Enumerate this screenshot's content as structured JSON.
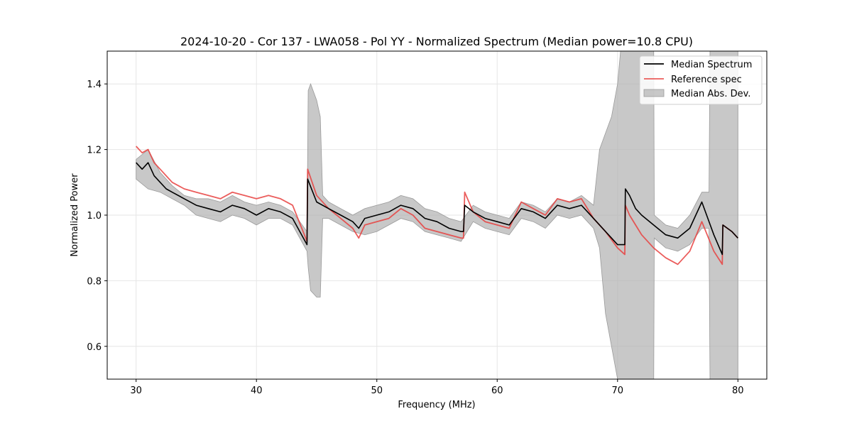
{
  "chart_data": {
    "type": "line",
    "title": "2024-10-20 - Cor 137 - LWA058 - Pol YY - Normalized Spectrum (Median power=10.8 CPU)",
    "xlabel": "Frequency (MHz)",
    "ylabel": "Normalized Power",
    "xlim": [
      27.6,
      82.4
    ],
    "ylim": [
      0.5,
      1.5
    ],
    "xticks": [
      30,
      40,
      50,
      60,
      70,
      80
    ],
    "yticks": [
      0.6,
      0.8,
      1.0,
      1.2,
      1.4
    ],
    "xtick_labels": [
      "30",
      "40",
      "50",
      "60",
      "70",
      "80"
    ],
    "ytick_labels": [
      "0.6",
      "0.8",
      "1.0",
      "1.2",
      "1.4"
    ],
    "grid": true,
    "legend_position": "top-right",
    "legend": [
      "Median Spectrum",
      "Reference spec",
      "Median Abs. Dev."
    ],
    "colors": {
      "median": "#000000",
      "reference": "#e8413f",
      "mad_fill": "#b0b0b0",
      "mad_edge": "#9a9a9a",
      "grid": "#e6e6e6"
    },
    "series": [
      {
        "name": "Median Spectrum",
        "x": [
          30,
          30.5,
          31,
          31.5,
          32,
          32.5,
          33,
          34,
          35,
          36,
          37,
          38,
          39,
          40,
          41,
          42,
          43,
          44.2,
          44.25,
          45,
          46,
          47,
          48,
          48.5,
          49,
          50,
          51,
          52,
          53,
          54,
          55,
          56,
          57,
          57.2,
          57.3,
          58,
          59,
          60,
          61,
          62,
          63,
          64,
          65,
          66,
          67,
          68,
          69,
          70,
          70.6,
          70.65,
          71,
          71.5,
          72,
          73,
          74,
          75,
          76,
          77,
          78,
          78.7,
          78.75,
          79.5,
          80
        ],
        "y": [
          1.16,
          1.14,
          1.16,
          1.12,
          1.1,
          1.08,
          1.07,
          1.05,
          1.03,
          1.02,
          1.01,
          1.03,
          1.02,
          1.0,
          1.02,
          1.01,
          0.99,
          0.91,
          1.11,
          1.04,
          1.02,
          1.0,
          0.98,
          0.96,
          0.99,
          1.0,
          1.01,
          1.03,
          1.02,
          0.99,
          0.98,
          0.96,
          0.95,
          0.95,
          1.03,
          1.01,
          0.99,
          0.98,
          0.97,
          1.02,
          1.01,
          0.99,
          1.03,
          1.02,
          1.03,
          0.99,
          0.95,
          0.91,
          0.91,
          1.08,
          1.06,
          1.02,
          1.0,
          0.97,
          0.94,
          0.93,
          0.96,
          1.04,
          0.94,
          0.88,
          0.97,
          0.95,
          0.93
        ]
      },
      {
        "name": "Reference spec",
        "x": [
          30,
          30.5,
          31,
          31.5,
          32,
          32.5,
          33,
          34,
          35,
          36,
          37,
          38,
          39,
          40,
          41,
          42,
          43,
          44.2,
          44.25,
          45,
          46,
          47,
          48,
          48.5,
          49,
          50,
          51,
          52,
          53,
          54,
          55,
          56,
          57,
          57.2,
          57.3,
          58,
          59,
          60,
          61,
          62,
          63,
          64,
          65,
          66,
          67,
          68,
          69,
          70,
          70.6,
          70.65,
          71,
          71.5,
          72,
          73,
          74,
          75,
          76,
          77,
          78,
          78.7,
          78.75,
          79.5,
          80
        ],
        "y": [
          1.21,
          1.19,
          1.2,
          1.16,
          1.14,
          1.12,
          1.1,
          1.08,
          1.07,
          1.06,
          1.05,
          1.07,
          1.06,
          1.05,
          1.06,
          1.05,
          1.03,
          0.92,
          1.14,
          1.06,
          1.02,
          0.99,
          0.96,
          0.93,
          0.97,
          0.98,
          0.99,
          1.02,
          1.0,
          0.96,
          0.95,
          0.94,
          0.93,
          0.93,
          1.07,
          1.01,
          0.98,
          0.97,
          0.96,
          1.04,
          1.02,
          1.0,
          1.05,
          1.04,
          1.05,
          0.99,
          0.95,
          0.9,
          0.88,
          1.03,
          1.0,
          0.97,
          0.94,
          0.9,
          0.87,
          0.85,
          0.89,
          0.98,
          0.89,
          0.85,
          0.97,
          0.95,
          0.93
        ]
      }
    ],
    "mad_band": {
      "name": "Median Abs. Dev.",
      "x": [
        30,
        31,
        32,
        33,
        34,
        35,
        36,
        37,
        38,
        39,
        40,
        41,
        42,
        43,
        44.2,
        44.3,
        44.5,
        45,
        45.3,
        45.5,
        46,
        47,
        48,
        49,
        50,
        51,
        52,
        53,
        54,
        55,
        56,
        57,
        58,
        59,
        60,
        61,
        62,
        63,
        64,
        65,
        66,
        67,
        68,
        68.5,
        69,
        69.5,
        70,
        70.5,
        71,
        72,
        73,
        73.05,
        74,
        75,
        76,
        77,
        77.6,
        77.7,
        78,
        79,
        80
      ],
      "upper": [
        1.17,
        1.2,
        1.13,
        1.09,
        1.06,
        1.05,
        1.05,
        1.04,
        1.06,
        1.04,
        1.03,
        1.04,
        1.03,
        1.01,
        0.95,
        1.38,
        1.4,
        1.35,
        1.3,
        1.06,
        1.04,
        1.02,
        1.0,
        1.02,
        1.03,
        1.04,
        1.06,
        1.05,
        1.02,
        1.01,
        0.99,
        0.98,
        1.03,
        1.01,
        1.0,
        0.99,
        1.04,
        1.03,
        1.01,
        1.05,
        1.04,
        1.06,
        1.03,
        1.2,
        1.25,
        1.3,
        1.4,
        1.6,
        1.6,
        1.6,
        1.6,
        1.0,
        0.97,
        0.96,
        1.0,
        1.07,
        1.07,
        1.6,
        1.6,
        1.6,
        1.6
      ],
      "lower": [
        1.11,
        1.08,
        1.07,
        1.05,
        1.03,
        1.0,
        0.99,
        0.98,
        1.0,
        0.99,
        0.97,
        0.99,
        0.99,
        0.97,
        0.89,
        0.84,
        0.77,
        0.75,
        0.75,
        0.99,
        0.99,
        0.97,
        0.95,
        0.94,
        0.95,
        0.97,
        0.99,
        0.98,
        0.95,
        0.94,
        0.93,
        0.92,
        0.98,
        0.96,
        0.95,
        0.94,
        0.99,
        0.98,
        0.96,
        1.0,
        0.99,
        1.0,
        0.96,
        0.9,
        0.7,
        0.6,
        0.5,
        0.4,
        0.4,
        0.4,
        0.4,
        0.93,
        0.9,
        0.89,
        0.91,
        0.96,
        0.96,
        0.4,
        0.4,
        0.4,
        0.4
      ]
    }
  }
}
